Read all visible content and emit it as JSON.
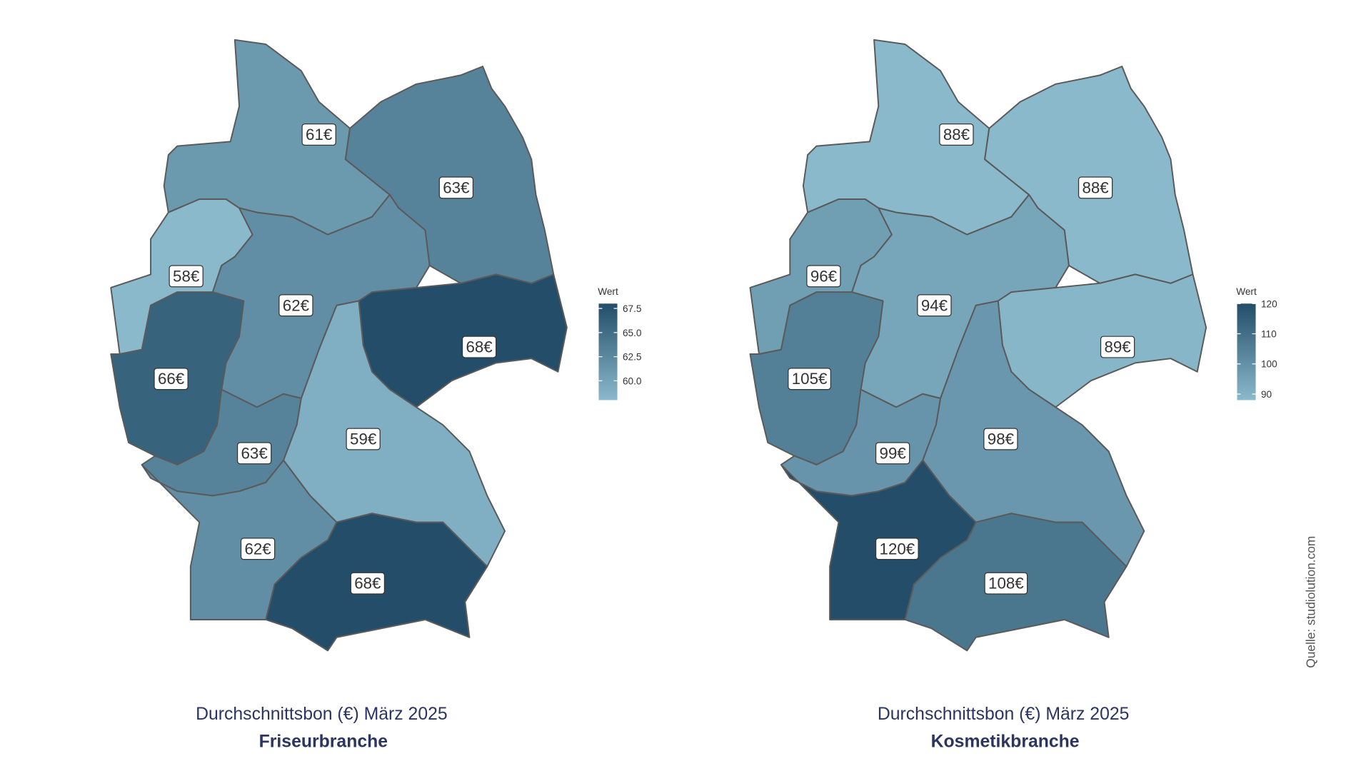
{
  "chart_data": [
    {
      "type": "choropleth",
      "title": "Durchschnittsbon (€) März 2025",
      "subtitle": "Friseurbranche",
      "values": [
        61,
        63,
        58,
        62,
        68,
        66,
        63,
        59,
        62,
        68
      ],
      "value_labels": [
        "61€",
        "63€",
        "58€",
        "62€",
        "68€",
        "66€",
        "63€",
        "59€",
        "62€",
        "68€"
      ],
      "legend_title": "Wert",
      "color_low": "#8ab9cc",
      "color_high": "#234d68",
      "lim": [
        58,
        68
      ],
      "ticks": [
        {
          "value": 60,
          "label": "60.0"
        },
        {
          "value": 62.5,
          "label": "62.5"
        },
        {
          "value": 65,
          "label": "65.0"
        },
        {
          "value": 67.5,
          "label": "67.5"
        }
      ]
    },
    {
      "type": "choropleth",
      "title": "Durchschnittsbon (€) März 2025",
      "subtitle": "Kosmetikbranche",
      "values": [
        88,
        88,
        96,
        94,
        89,
        105,
        99,
        98,
        120,
        108
      ],
      "value_labels": [
        "88€",
        "88€",
        "96€",
        "94€",
        "89€",
        "105€",
        "99€",
        "98€",
        "120€",
        "108€"
      ],
      "legend_title": "Wert",
      "color_low": "#8ab9cc",
      "color_high": "#234d68",
      "lim": [
        88,
        120
      ],
      "ticks": [
        90,
        100,
        110,
        120
      ]
    }
  ],
  "source": "Quelle: studiolution.com"
}
